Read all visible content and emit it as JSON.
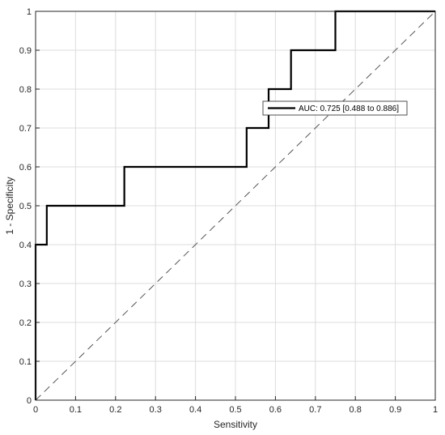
{
  "chart_data": {
    "type": "line",
    "title": "",
    "xlabel": "Sensitivity",
    "ylabel": "1 - Specificity",
    "xlim": [
      0,
      1
    ],
    "ylim": [
      0,
      1
    ],
    "xticks": [
      "0",
      "0.1",
      "0.2",
      "0.3",
      "0.4",
      "0.5",
      "0.6",
      "0.7",
      "0.8",
      "0.9",
      "1"
    ],
    "yticks": [
      "0",
      "0.1",
      "0.2",
      "0.3",
      "0.4",
      "0.5",
      "0.6",
      "0.7",
      "0.8",
      "0.9",
      "1"
    ],
    "grid": true,
    "legend": {
      "placement": "upper-right-interior",
      "entries": [
        "AUC: 0.725 [0.488 to 0.886]"
      ]
    },
    "series": [
      {
        "name": "AUC: 0.725 [0.488 to 0.886]",
        "color": "#000000",
        "style": "solid",
        "x": [
          0,
          0,
          0.028,
          0.028,
          0.222,
          0.222,
          0.528,
          0.528,
          0.583,
          0.583,
          0.639,
          0.639,
          0.75,
          0.75,
          1
        ],
        "y": [
          0,
          0.4,
          0.4,
          0.5,
          0.5,
          0.6,
          0.6,
          0.7,
          0.7,
          0.8,
          0.8,
          0.9,
          0.9,
          1,
          1
        ]
      },
      {
        "color": "#555555",
        "style": "dashed",
        "x": [
          0,
          1
        ],
        "y": [
          0,
          1
        ]
      }
    ]
  }
}
